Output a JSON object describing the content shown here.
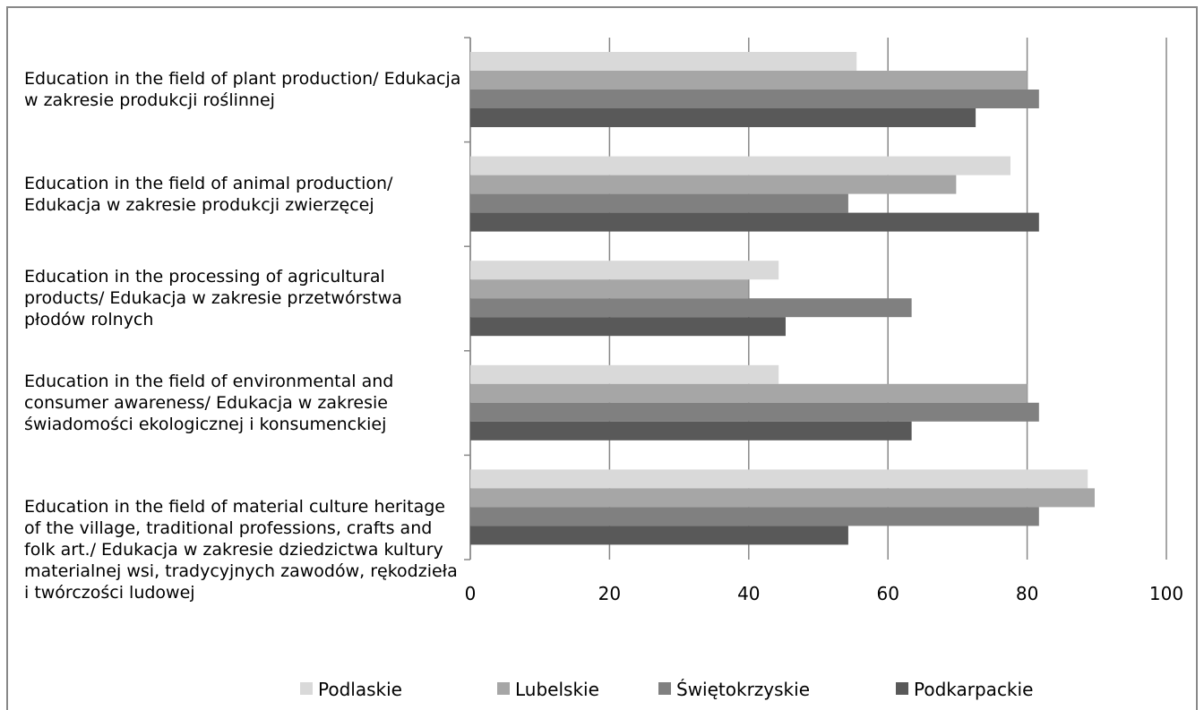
{
  "chart_data": {
    "type": "bar",
    "orientation": "horizontal",
    "categories": [
      "Education in the field of plant production/ Edukacja w zakresie produkcji roślinnej",
      "Education in the field of animal production/ Edukacja w zakresie produkcji zwierzęcej",
      "Education in the processing of agricultural products/ Edukacja w zakresie przetwórstwa płodów rolnych",
      "Education in the field of environmental and consumer awareness/ Edukacja w zakresie świadomości ekologicznej i konsumenckiej",
      "Education in the field of material culture heritage of the village, traditional professions, crafts and folk art./ Edukacja w zakresie dziedzictwa kultury materialnej wsi, tradycyjnych zawodów, rękodzieła i twórczości ludowej"
    ],
    "series": [
      {
        "name": "Podlaskie",
        "color": "#d9d9d9",
        "values": [
          55.5,
          77.6,
          44.3,
          44.3,
          88.7
        ]
      },
      {
        "name": "Lubelskie",
        "color": "#a6a6a6",
        "values": [
          80,
          69.8,
          39.9,
          80,
          89.7
        ]
      },
      {
        "name": "Świętokrzyskie",
        "color": "#808080",
        "values": [
          81.7,
          54.3,
          63.4,
          81.7,
          81.7
        ]
      },
      {
        "name": "Podkarpackie",
        "color": "#595959",
        "values": [
          72.6,
          81.7,
          45.3,
          63.4,
          54.3
        ]
      }
    ],
    "xlim": [
      0,
      100
    ],
    "xticks": [
      0,
      20,
      40,
      60,
      80,
      100
    ],
    "grid": true,
    "legend": "bottom"
  }
}
